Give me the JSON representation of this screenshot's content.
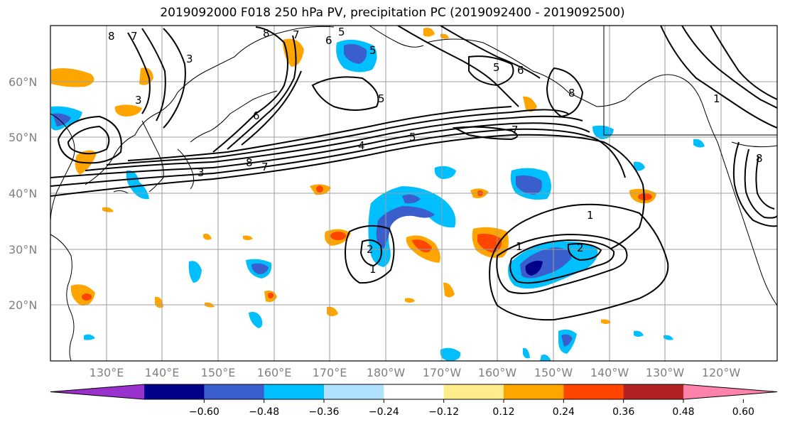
{
  "title": "2019092000 F018 250 hPa PV, precipitation PC (2019092400 - 2019092500)",
  "lat_labels": [
    "60°N",
    "50°N",
    "40°N",
    "30°N",
    "20°N"
  ],
  "lon_labels": [
    "130°E",
    "140°E",
    "150°E",
    "160°E",
    "170°E",
    "180°W",
    "170°W",
    "160°W",
    "150°W",
    "140°W",
    "130°W",
    "120°W"
  ],
  "colorbar": {
    "colors": [
      "#9932cc",
      "#00008b",
      "#3a5fcd",
      "#00bfff",
      "#b0e2ff",
      "#ffffff",
      "#ffec8b",
      "#ffa500",
      "#ff4500",
      "#b22222",
      "#ff82ab"
    ],
    "tick_labels": [
      "−0.60",
      "−0.48",
      "−0.36",
      "−0.24",
      "−0.12",
      "0.12",
      "0.24",
      "0.36",
      "0.48",
      "0.60"
    ]
  },
  "contour_labels": [
    "1",
    "1",
    "1",
    "2",
    "2",
    "3",
    "3",
    "4",
    "5",
    "5",
    "5",
    "6",
    "6",
    "7",
    "7",
    "7",
    "8",
    "8",
    "8",
    "8",
    "5",
    "7",
    "3",
    "5",
    "6",
    "8",
    "1"
  ]
}
